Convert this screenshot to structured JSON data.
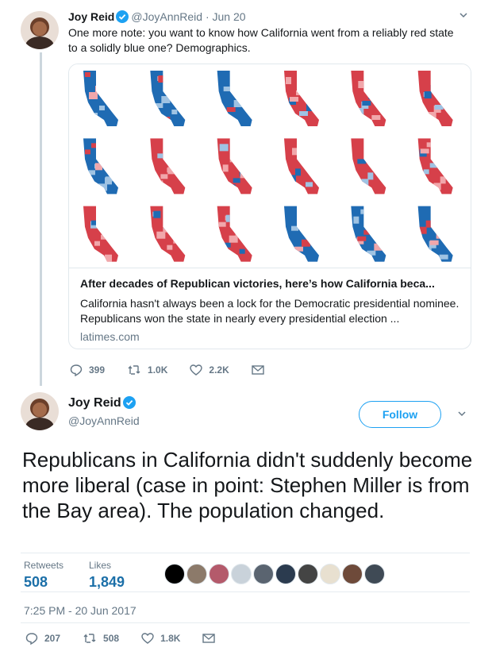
{
  "tweet1": {
    "name": "Joy Reid",
    "handle": "@JoyAnnReid",
    "separator": "·",
    "date": "Jun 20",
    "text": "One more note: you want to know how California went from a reliably red state to a solidly blue one? Demographics.",
    "card": {
      "title": "After decades of Republican victories, here’s how California beca...",
      "description": "California hasn't always been a lock for the Democratic presidential nominee. Republicans won the state in nearly every presidential election ...",
      "domain": "latimes.com"
    },
    "replies": "399",
    "retweets": "1.0K",
    "likes": "2.2K"
  },
  "tweet2": {
    "name": "Joy Reid",
    "handle": "@JoyAnnReid",
    "follow_label": "Follow",
    "text": "Republicans in California didn't suddenly become more liberal (case in point: Stephen Miller is from the Bay area). The population changed.",
    "retweets_label": "Retweets",
    "retweets_count": "508",
    "likes_label": "Likes",
    "likes_count": "1,849",
    "timestamp": "7:25 PM - 20 Jun 2017",
    "replies": "207",
    "retweets": "508",
    "likes": "1.8K"
  },
  "colors": {
    "blue": "#1da1f2",
    "dem_dark": "#1f6bb3",
    "dem_light": "#9fc3e3",
    "rep_dark": "#d6404a",
    "rep_light": "#f1a7ab"
  }
}
